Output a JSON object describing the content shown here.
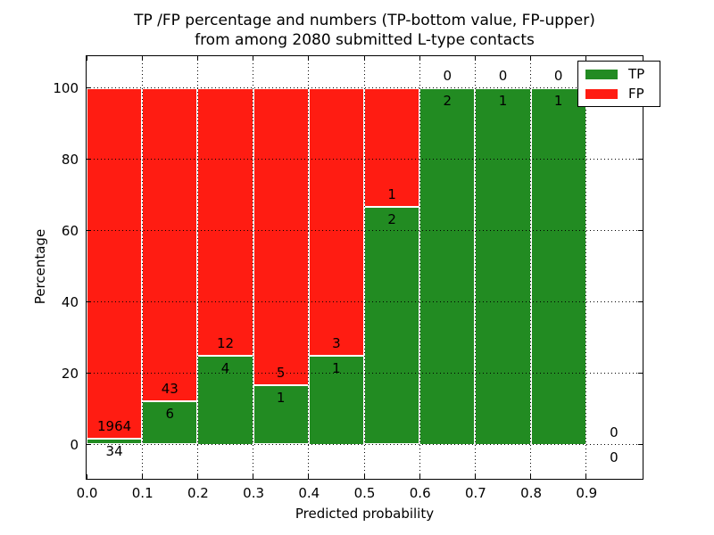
{
  "figure": {
    "title_line1": "TP /FP percentage and numbers (TP-bottom value, FP-upper)",
    "title_line2": "from among 2080 submitted L-type contacts"
  },
  "axes": {
    "xlabel": "Predicted probability",
    "ylabel": "Percentage",
    "x_tick_labels": [
      "0.0",
      "0.1",
      "0.2",
      "0.3",
      "0.4",
      "0.5",
      "0.6",
      "0.7",
      "0.8",
      "0.9"
    ],
    "x_tick_positions": [
      0.0,
      0.1,
      0.2,
      0.3,
      0.4,
      0.5,
      0.6,
      0.7,
      0.8,
      0.9
    ],
    "y_tick_labels": [
      "0",
      "20",
      "40",
      "60",
      "80",
      "100"
    ],
    "y_tick_values": [
      0,
      20,
      40,
      60,
      80,
      100
    ]
  },
  "legend": {
    "entries": [
      {
        "label": "TP",
        "color": "#228b22"
      },
      {
        "label": "FP",
        "color": "#ff1c12"
      }
    ]
  },
  "chart_data": {
    "type": "bar",
    "stacked": true,
    "title": "TP /FP percentage and numbers (TP-bottom value, FP-upper) from among 2080 submitted L-type contacts",
    "xlabel": "Predicted probability",
    "ylabel": "Percentage",
    "xlim": [
      0.0,
      1.0
    ],
    "ylim": [
      -9.75,
      109.25
    ],
    "grid": true,
    "grid_style": "dotted",
    "legend_position": "upper right",
    "series": [
      {
        "name": "TP",
        "color": "#228b22",
        "role": "bottom segment, percentage of bin"
      },
      {
        "name": "FP",
        "color": "#ff1c12",
        "role": "upper segment, percentage of bin"
      }
    ],
    "bins": [
      {
        "x0": 0.0,
        "x1": 0.1,
        "tp": 34,
        "fp": 1964,
        "tp_pct": 1.7
      },
      {
        "x0": 0.1,
        "x1": 0.2,
        "tp": 6,
        "fp": 43,
        "tp_pct": 12.2
      },
      {
        "x0": 0.2,
        "x1": 0.3,
        "tp": 4,
        "fp": 12,
        "tp_pct": 25.0
      },
      {
        "x0": 0.3,
        "x1": 0.4,
        "tp": 1,
        "fp": 5,
        "tp_pct": 16.7
      },
      {
        "x0": 0.4,
        "x1": 0.5,
        "tp": 1,
        "fp": 3,
        "tp_pct": 25.0
      },
      {
        "x0": 0.5,
        "x1": 0.6,
        "tp": 2,
        "fp": 1,
        "tp_pct": 66.7
      },
      {
        "x0": 0.6,
        "x1": 0.7,
        "tp": 2,
        "fp": 0,
        "tp_pct": 100.0
      },
      {
        "x0": 0.7,
        "x1": 0.8,
        "tp": 1,
        "fp": 0,
        "tp_pct": 100.0
      },
      {
        "x0": 0.8,
        "x1": 0.9,
        "tp": 1,
        "fp": 0,
        "tp_pct": 100.0
      },
      {
        "x0": 0.9,
        "x1": 1.0,
        "tp": 0,
        "fp": 0,
        "tp_pct": null
      }
    ]
  }
}
